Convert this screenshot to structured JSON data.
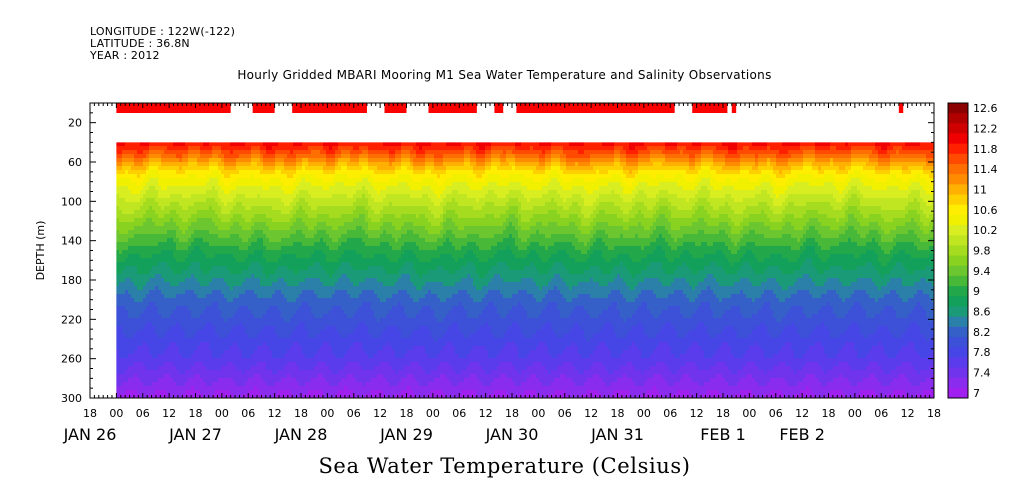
{
  "header_lines": [
    "LONGITUDE : 122W(-122)",
    "LATITUDE : 36.8N",
    "YEAR : 2012"
  ],
  "chart_data": {
    "type": "heatmap",
    "title": "Hourly Gridded MBARI Mooring M1 Sea Water Temperature and Salinity Observations",
    "colorbar_title": "Sea Water Temperature (Celsius)",
    "ylabel": "DEPTH (m)",
    "y_direction": "down",
    "ylim": [
      0,
      300
    ],
    "y_ticks": [
      20,
      60,
      100,
      140,
      180,
      220,
      260,
      300
    ],
    "x_time_range_hours": [
      -6,
      186
    ],
    "x_hour_ticks": [
      {
        "t": -6,
        "label": "18"
      },
      {
        "t": 0,
        "label": "00"
      },
      {
        "t": 6,
        "label": "06"
      },
      {
        "t": 12,
        "label": "12"
      },
      {
        "t": 18,
        "label": "18"
      },
      {
        "t": 24,
        "label": "00"
      },
      {
        "t": 30,
        "label": "06"
      },
      {
        "t": 36,
        "label": "12"
      },
      {
        "t": 42,
        "label": "18"
      },
      {
        "t": 48,
        "label": "00"
      },
      {
        "t": 54,
        "label": "06"
      },
      {
        "t": 60,
        "label": "12"
      },
      {
        "t": 66,
        "label": "18"
      },
      {
        "t": 72,
        "label": "00"
      },
      {
        "t": 78,
        "label": "06"
      },
      {
        "t": 84,
        "label": "12"
      },
      {
        "t": 90,
        "label": "18"
      },
      {
        "t": 96,
        "label": "00"
      },
      {
        "t": 102,
        "label": "06"
      },
      {
        "t": 108,
        "label": "12"
      },
      {
        "t": 114,
        "label": "18"
      },
      {
        "t": 120,
        "label": "00"
      },
      {
        "t": 126,
        "label": "06"
      },
      {
        "t": 132,
        "label": "12"
      },
      {
        "t": 138,
        "label": "18"
      },
      {
        "t": 144,
        "label": "00"
      },
      {
        "t": 150,
        "label": "06"
      },
      {
        "t": 156,
        "label": "12"
      },
      {
        "t": 162,
        "label": "18"
      },
      {
        "t": 168,
        "label": "00"
      },
      {
        "t": 174,
        "label": "06"
      },
      {
        "t": 180,
        "label": "12"
      },
      {
        "t": 186,
        "label": "18"
      }
    ],
    "x_date_labels": [
      {
        "t": -6,
        "label": "JAN 26"
      },
      {
        "t": 18,
        "label": "JAN 27"
      },
      {
        "t": 42,
        "label": "JAN 28"
      },
      {
        "t": 66,
        "label": "JAN 29"
      },
      {
        "t": 90,
        "label": "JAN 30"
      },
      {
        "t": 114,
        "label": "JAN 31"
      },
      {
        "t": 138,
        "label": "FEB  1"
      },
      {
        "t": 156,
        "label": "FEB  2"
      }
    ],
    "data_start_hour": 0,
    "top_valid_depth": 40,
    "colorbar_levels": [
      12.6,
      12.4,
      12.2,
      12,
      11.8,
      11.6,
      11.4,
      11.2,
      11,
      10.8,
      10.6,
      10.4,
      10.2,
      10,
      9.8,
      9.6,
      9.4,
      9.2,
      9,
      8.8,
      8.6,
      8.4,
      8.2,
      8,
      7.8,
      7.6,
      7.4,
      7.2,
      7
    ],
    "colorbar_labels": [
      "12.6",
      "12.2",
      "11.8",
      "11.4",
      "11",
      "10.6",
      "10.2",
      "9.8",
      "9.4",
      "9",
      "8.6",
      "8.2",
      "7.8",
      "7.4",
      "7"
    ],
    "colorbar_colors": [
      "#8b0000",
      "#b00000",
      "#d10000",
      "#f00000",
      "#ff2000",
      "#ff4a00",
      "#ff6e00",
      "#ff8c00",
      "#ffb000",
      "#ffd000",
      "#ffee00",
      "#f0f000",
      "#d8ee20",
      "#bfe620",
      "#a5dc20",
      "#8ad220",
      "#6cc630",
      "#48b838",
      "#22a84a",
      "#12a05a",
      "#1b9a78",
      "#2a80a8",
      "#3460c8",
      "#3c50d8",
      "#4646e6",
      "#5a3cec",
      "#7034ec",
      "#8a2cee",
      "#a020f0"
    ],
    "surface_flag_segments_hours": [
      [
        0,
        26
      ],
      [
        31,
        36
      ],
      [
        40,
        57
      ],
      [
        61,
        66
      ],
      [
        71,
        82
      ],
      [
        86,
        88
      ],
      [
        91,
        127
      ],
      [
        131,
        139
      ],
      [
        140,
        141
      ],
      [
        178,
        179
      ]
    ],
    "temperature_profile": {
      "depths": [
        40,
        50,
        60,
        70,
        80,
        90,
        100,
        110,
        120,
        130,
        140,
        150,
        160,
        170,
        180,
        190,
        200,
        210,
        220,
        230,
        240,
        250,
        260,
        270,
        280,
        290,
        300
      ],
      "values": [
        12.0,
        11.6,
        11.1,
        10.7,
        10.45,
        10.25,
        10.05,
        9.85,
        9.65,
        9.45,
        9.25,
        9.05,
        8.9,
        8.75,
        8.6,
        8.45,
        8.3,
        8.2,
        8.1,
        8.0,
        7.9,
        7.8,
        7.7,
        7.55,
        7.4,
        7.25,
        7.1
      ]
    }
  }
}
